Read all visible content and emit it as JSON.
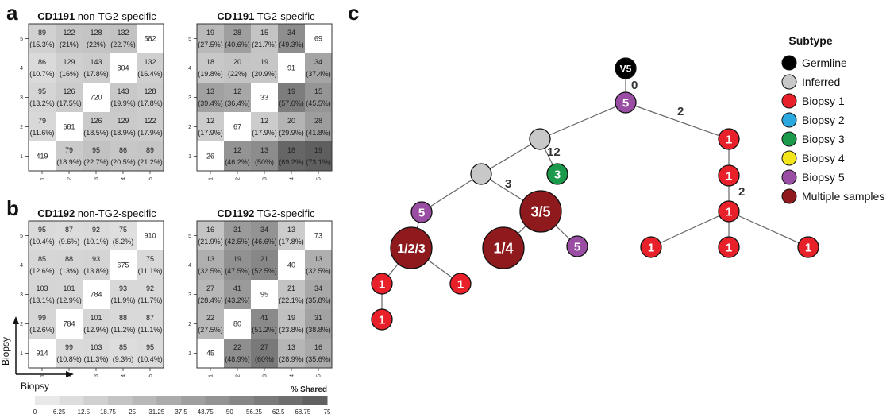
{
  "panel_labels": {
    "a": "a",
    "b": "b",
    "c": "c"
  },
  "axis_labels": {
    "x": "Biopsy",
    "y": "Biopsy"
  },
  "colorbar": {
    "title": "% Shared",
    "ticks": [
      "0",
      "6.25",
      "12.5",
      "18.75",
      "25",
      "31.25",
      "37.5",
      "43.75",
      "50",
      "56.25",
      "62.5",
      "68.75",
      "75"
    ],
    "min": 0,
    "max": 75,
    "low_color": "#efefef",
    "high_color": "#5b5b5b",
    "diagonal_color": "#ffffff"
  },
  "chart_data": [
    {
      "type": "heatmap",
      "panel": "a",
      "title_bold": "CD1191",
      "title_rest": " non-TG2-specific",
      "x_ticks": [
        "1",
        "2",
        "3",
        "4",
        "5"
      ],
      "y_ticks": [
        "1",
        "2",
        "3",
        "4",
        "5"
      ],
      "rows": [
        [
          {
            "count": "89",
            "pct": "(15.3%)",
            "v": 15.3
          },
          {
            "count": "122",
            "pct": "(21%)",
            "v": 21
          },
          {
            "count": "128",
            "pct": "(22%)",
            "v": 22
          },
          {
            "count": "132",
            "pct": "(22.7%)",
            "v": 22.7
          },
          {
            "count": "582",
            "pct": "",
            "v": null
          }
        ],
        [
          {
            "count": "86",
            "pct": "(10.7%)",
            "v": 10.7
          },
          {
            "count": "129",
            "pct": "(16%)",
            "v": 16
          },
          {
            "count": "143",
            "pct": "(17.8%)",
            "v": 17.8
          },
          {
            "count": "804",
            "pct": "",
            "v": null
          },
          {
            "count": "132",
            "pct": "(16.4%)",
            "v": 16.4
          }
        ],
        [
          {
            "count": "95",
            "pct": "(13.2%)",
            "v": 13.2
          },
          {
            "count": "126",
            "pct": "(17.5%)",
            "v": 17.5
          },
          {
            "count": "720",
            "pct": "",
            "v": null
          },
          {
            "count": "143",
            "pct": "(19.9%)",
            "v": 19.9
          },
          {
            "count": "128",
            "pct": "(17.8%)",
            "v": 17.8
          }
        ],
        [
          {
            "count": "79",
            "pct": "(11.6%)",
            "v": 11.6
          },
          {
            "count": "681",
            "pct": "",
            "v": null
          },
          {
            "count": "126",
            "pct": "(18.5%)",
            "v": 18.5
          },
          {
            "count": "129",
            "pct": "(18.9%)",
            "v": 18.9
          },
          {
            "count": "122",
            "pct": "(17.9%)",
            "v": 17.9
          }
        ],
        [
          {
            "count": "419",
            "pct": "",
            "v": null
          },
          {
            "count": "79",
            "pct": "(18.9%)",
            "v": 18.9
          },
          {
            "count": "95",
            "pct": "(22.7%)",
            "v": 22.7
          },
          {
            "count": "86",
            "pct": "(20.5%)",
            "v": 20.5
          },
          {
            "count": "89",
            "pct": "(21.2%)",
            "v": 21.2
          }
        ]
      ]
    },
    {
      "type": "heatmap",
      "panel": "a",
      "title_bold": "CD1191",
      "title_rest": " TG2-specific",
      "x_ticks": [
        "1",
        "2",
        "3",
        "4",
        "5"
      ],
      "y_ticks": [
        "1",
        "2",
        "3",
        "4",
        "5"
      ],
      "rows": [
        [
          {
            "count": "19",
            "pct": "(27.5%)",
            "v": 27.5
          },
          {
            "count": "28",
            "pct": "(40.6%)",
            "v": 40.6
          },
          {
            "count": "15",
            "pct": "(21.7%)",
            "v": 21.7
          },
          {
            "count": "34",
            "pct": "(49.3%)",
            "v": 49.3
          },
          {
            "count": "69",
            "pct": "",
            "v": null
          }
        ],
        [
          {
            "count": "18",
            "pct": "(19.8%)",
            "v": 19.8
          },
          {
            "count": "20",
            "pct": "(22%)",
            "v": 22
          },
          {
            "count": "19",
            "pct": "(20.9%)",
            "v": 20.9
          },
          {
            "count": "91",
            "pct": "",
            "v": null
          },
          {
            "count": "34",
            "pct": "(37.4%)",
            "v": 37.4
          }
        ],
        [
          {
            "count": "13",
            "pct": "(39.4%)",
            "v": 39.4
          },
          {
            "count": "12",
            "pct": "(36.4%)",
            "v": 36.4
          },
          {
            "count": "33",
            "pct": "",
            "v": null
          },
          {
            "count": "19",
            "pct": "(57.6%)",
            "v": 57.6
          },
          {
            "count": "15",
            "pct": "(45.5%)",
            "v": 45.5
          }
        ],
        [
          {
            "count": "12",
            "pct": "(17.9%)",
            "v": 17.9
          },
          {
            "count": "67",
            "pct": "",
            "v": null
          },
          {
            "count": "12",
            "pct": "(17.9%)",
            "v": 17.9
          },
          {
            "count": "20",
            "pct": "(29.9%)",
            "v": 29.9
          },
          {
            "count": "28",
            "pct": "(41.8%)",
            "v": 41.8
          }
        ],
        [
          {
            "count": "26",
            "pct": "",
            "v": null
          },
          {
            "count": "12",
            "pct": "(46.2%)",
            "v": 46.2
          },
          {
            "count": "13",
            "pct": "(50%)",
            "v": 50
          },
          {
            "count": "18",
            "pct": "(69.2%)",
            "v": 69.2
          },
          {
            "count": "19",
            "pct": "(73.1%)",
            "v": 73.1
          }
        ]
      ]
    },
    {
      "type": "heatmap",
      "panel": "b",
      "title_bold": "CD1192",
      "title_rest": " non-TG2-specific",
      "x_ticks": [
        "1",
        "2",
        "3",
        "4",
        "5"
      ],
      "y_ticks": [
        "1",
        "2",
        "3",
        "4",
        "5"
      ],
      "rows": [
        [
          {
            "count": "95",
            "pct": "(10.4%)",
            "v": 10.4
          },
          {
            "count": "87",
            "pct": "(9.6%)",
            "v": 9.6
          },
          {
            "count": "92",
            "pct": "(10.1%)",
            "v": 10.1
          },
          {
            "count": "75",
            "pct": "(8.2%)",
            "v": 8.2
          },
          {
            "count": "910",
            "pct": "",
            "v": null
          }
        ],
        [
          {
            "count": "85",
            "pct": "(12.6%)",
            "v": 12.6
          },
          {
            "count": "88",
            "pct": "(13%)",
            "v": 13
          },
          {
            "count": "93",
            "pct": "(13.8%)",
            "v": 13.8
          },
          {
            "count": "675",
            "pct": "",
            "v": null
          },
          {
            "count": "75",
            "pct": "(11.1%)",
            "v": 11.1
          }
        ],
        [
          {
            "count": "103",
            "pct": "(13.1%)",
            "v": 13.1
          },
          {
            "count": "101",
            "pct": "(12.9%)",
            "v": 12.9
          },
          {
            "count": "784",
            "pct": "",
            "v": null
          },
          {
            "count": "93",
            "pct": "(11.9%)",
            "v": 11.9
          },
          {
            "count": "92",
            "pct": "(11.7%)",
            "v": 11.7
          }
        ],
        [
          {
            "count": "99",
            "pct": "(12.6%)",
            "v": 12.6
          },
          {
            "count": "784",
            "pct": "",
            "v": null
          },
          {
            "count": "101",
            "pct": "(12.9%)",
            "v": 12.9
          },
          {
            "count": "88",
            "pct": "(11.2%)",
            "v": 11.2
          },
          {
            "count": "87",
            "pct": "(11.1%)",
            "v": 11.1
          }
        ],
        [
          {
            "count": "914",
            "pct": "",
            "v": null
          },
          {
            "count": "99",
            "pct": "(10.8%)",
            "v": 10.8
          },
          {
            "count": "103",
            "pct": "(11.3%)",
            "v": 11.3
          },
          {
            "count": "85",
            "pct": "(9.3%)",
            "v": 9.3
          },
          {
            "count": "95",
            "pct": "(10.4%)",
            "v": 10.4
          }
        ]
      ]
    },
    {
      "type": "heatmap",
      "panel": "b",
      "title_bold": "CD1192",
      "title_rest": " TG2-specific",
      "x_ticks": [
        "1",
        "2",
        "3",
        "4",
        "5"
      ],
      "y_ticks": [
        "1",
        "2",
        "3",
        "4",
        "5"
      ],
      "rows": [
        [
          {
            "count": "16",
            "pct": "(21.9%)",
            "v": 21.9
          },
          {
            "count": "31",
            "pct": "(42.5%)",
            "v": 42.5
          },
          {
            "count": "34",
            "pct": "(46.6%)",
            "v": 46.6
          },
          {
            "count": "13",
            "pct": "(17.8%)",
            "v": 17.8
          },
          {
            "count": "73",
            "pct": "",
            "v": null
          }
        ],
        [
          {
            "count": "13",
            "pct": "(32.5%)",
            "v": 32.5
          },
          {
            "count": "19",
            "pct": "(47.5%)",
            "v": 47.5
          },
          {
            "count": "21",
            "pct": "(52.5%)",
            "v": 52.5
          },
          {
            "count": "40",
            "pct": "",
            "v": null
          },
          {
            "count": "13",
            "pct": "(32.5%)",
            "v": 32.5
          }
        ],
        [
          {
            "count": "27",
            "pct": "(28.4%)",
            "v": 28.4
          },
          {
            "count": "41",
            "pct": "(43.2%)",
            "v": 43.2
          },
          {
            "count": "95",
            "pct": "",
            "v": null
          },
          {
            "count": "21",
            "pct": "(22.1%)",
            "v": 22.1
          },
          {
            "count": "34",
            "pct": "(35.8%)",
            "v": 35.8
          }
        ],
        [
          {
            "count": "22",
            "pct": "(27.5%)",
            "v": 27.5
          },
          {
            "count": "80",
            "pct": "",
            "v": null
          },
          {
            "count": "41",
            "pct": "(51.2%)",
            "v": 51.2
          },
          {
            "count": "19",
            "pct": "(23.8%)",
            "v": 23.8
          },
          {
            "count": "31",
            "pct": "(38.8%)",
            "v": 38.8
          }
        ],
        [
          {
            "count": "45",
            "pct": "",
            "v": null
          },
          {
            "count": "22",
            "pct": "(48.9%)",
            "v": 48.9
          },
          {
            "count": "27",
            "pct": "(60%)",
            "v": 60
          },
          {
            "count": "13",
            "pct": "(28.9%)",
            "v": 28.9
          },
          {
            "count": "16",
            "pct": "(35.6%)",
            "v": 35.6
          }
        ]
      ]
    }
  ],
  "tree": {
    "legend": {
      "title": "Subtype",
      "items": [
        {
          "label": "Germline",
          "color": "#000000"
        },
        {
          "label": "Inferred",
          "color": "#c8c8c8"
        },
        {
          "label": "Biopsy 1",
          "color": "#e8202a"
        },
        {
          "label": "Biopsy 2",
          "color": "#2aa9e0"
        },
        {
          "label": "Biopsy 3",
          "color": "#1a9a4a"
        },
        {
          "label": "Biopsy 4",
          "color": "#f2e51c"
        },
        {
          "label": "Biopsy 5",
          "color": "#9a4ea3"
        },
        {
          "label": "Multiple samples",
          "color": "#8e1a1e"
        }
      ]
    },
    "nodes": [
      {
        "id": "germ",
        "label": "V5",
        "color": "#000000",
        "size": "s"
      },
      {
        "id": "root",
        "label": "5",
        "color": "#9a4ea3",
        "size": "s"
      },
      {
        "id": "inf1",
        "label": "",
        "color": "#c8c8c8",
        "size": "s"
      },
      {
        "id": "inf2",
        "label": "",
        "color": "#c8c8c8",
        "size": "s"
      },
      {
        "id": "b3",
        "label": "3",
        "color": "#1a9a4a",
        "size": "s"
      },
      {
        "id": "p5a",
        "label": "5",
        "color": "#9a4ea3",
        "size": "s"
      },
      {
        "id": "m35",
        "label": "3/5",
        "color": "#8e1a1e",
        "size": "l"
      },
      {
        "id": "m123",
        "label": "1/2/3",
        "color": "#8e1a1e",
        "size": "l"
      },
      {
        "id": "m14",
        "label": "1/4",
        "color": "#8e1a1e",
        "size": "l"
      },
      {
        "id": "p5b",
        "label": "5",
        "color": "#9a4ea3",
        "size": "s"
      },
      {
        "id": "r1a",
        "label": "1",
        "color": "#e8202a",
        "size": "s"
      },
      {
        "id": "r1b",
        "label": "1",
        "color": "#e8202a",
        "size": "s"
      },
      {
        "id": "r1c",
        "label": "1",
        "color": "#e8202a",
        "size": "s"
      },
      {
        "id": "r1d",
        "label": "1",
        "color": "#e8202a",
        "size": "s"
      },
      {
        "id": "r1e",
        "label": "1",
        "color": "#e8202a",
        "size": "s"
      },
      {
        "id": "r1f",
        "label": "1",
        "color": "#e8202a",
        "size": "s"
      },
      {
        "id": "r1g",
        "label": "1",
        "color": "#e8202a",
        "size": "s"
      },
      {
        "id": "l1a",
        "label": "1",
        "color": "#e8202a",
        "size": "s"
      },
      {
        "id": "l1b",
        "label": "1",
        "color": "#e8202a",
        "size": "s"
      },
      {
        "id": "l1c",
        "label": "1",
        "color": "#e8202a",
        "size": "s"
      }
    ],
    "edges": [
      {
        "from": "germ",
        "to": "root",
        "label": "0"
      },
      {
        "from": "root",
        "to": "inf1",
        "label": ""
      },
      {
        "from": "root",
        "to": "r1a",
        "label": "2"
      },
      {
        "from": "inf1",
        "to": "inf2",
        "label": ""
      },
      {
        "from": "inf1",
        "to": "b3",
        "label": "12"
      },
      {
        "from": "inf2",
        "to": "p5a",
        "label": ""
      },
      {
        "from": "inf2",
        "to": "m35",
        "label": "3"
      },
      {
        "from": "p5a",
        "to": "m123",
        "label": ""
      },
      {
        "from": "m35",
        "to": "m14",
        "label": ""
      },
      {
        "from": "m35",
        "to": "p5b",
        "label": ""
      },
      {
        "from": "m123",
        "to": "l1a",
        "label": ""
      },
      {
        "from": "m123",
        "to": "l1b",
        "label": ""
      },
      {
        "from": "l1a",
        "to": "l1c",
        "label": ""
      },
      {
        "from": "r1a",
        "to": "r1b",
        "label": ""
      },
      {
        "from": "r1b",
        "to": "r1c",
        "label": "2"
      },
      {
        "from": "r1c",
        "to": "r1d",
        "label": ""
      },
      {
        "from": "r1c",
        "to": "r1e",
        "label": ""
      },
      {
        "from": "r1c",
        "to": "r1f",
        "label": ""
      }
    ]
  }
}
